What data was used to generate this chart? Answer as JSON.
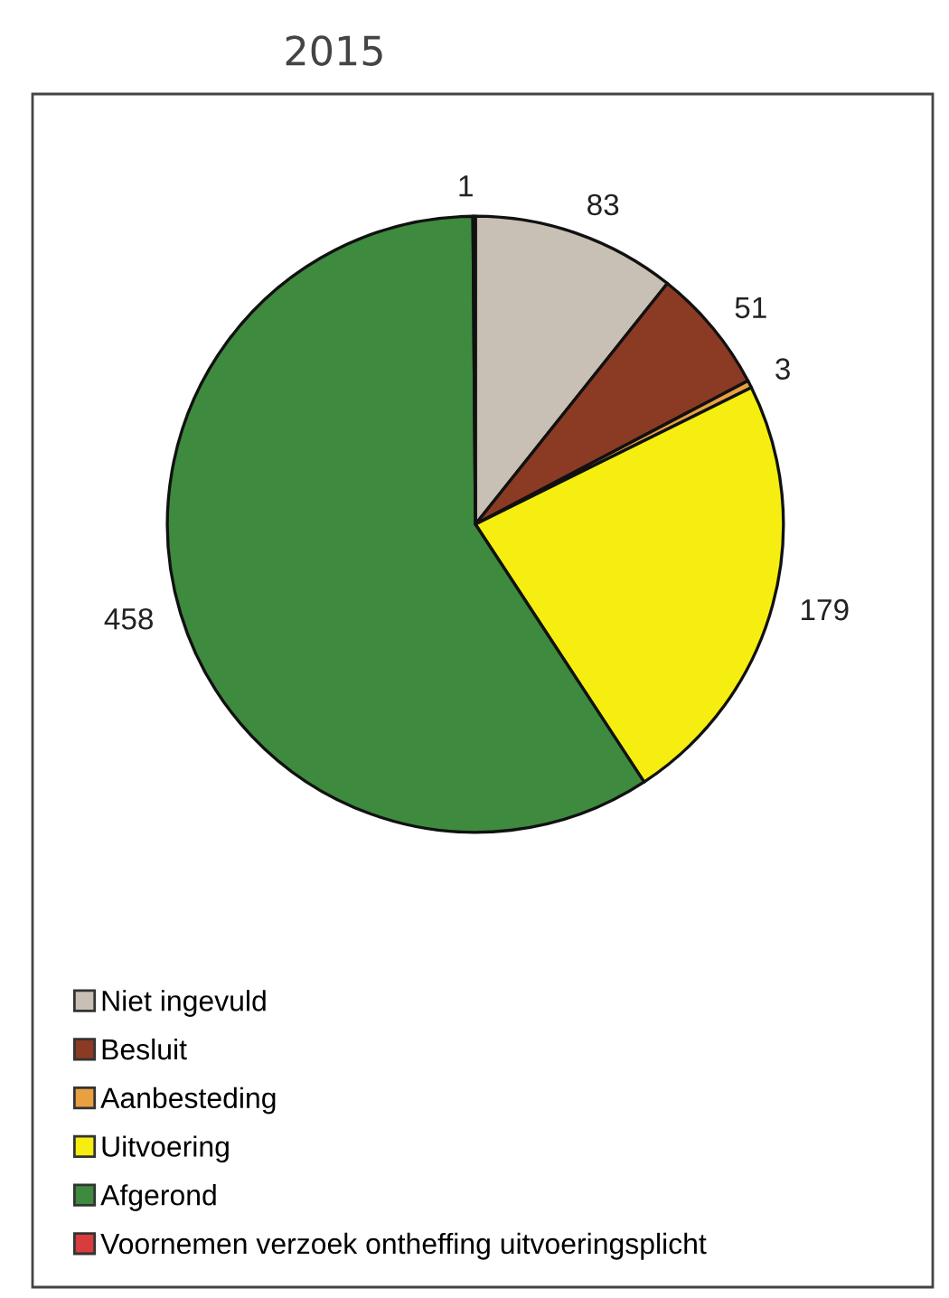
{
  "chart_data": {
    "type": "pie",
    "title": "2015",
    "categories": [
      "Niet ingevuld",
      "Besluit",
      "Aanbesteding",
      "Uitvoering",
      "Afgerond",
      "Voornemen verzoek ontheffing uitvoeringsplicht"
    ],
    "values": [
      83,
      51,
      3,
      179,
      458,
      1
    ],
    "colors": [
      "#c8c0b4",
      "#8b3a24",
      "#e8a040",
      "#f5ee10",
      "#3e8a3e",
      "#d83c3c"
    ],
    "data_labels": true,
    "legend": "bottom left"
  }
}
